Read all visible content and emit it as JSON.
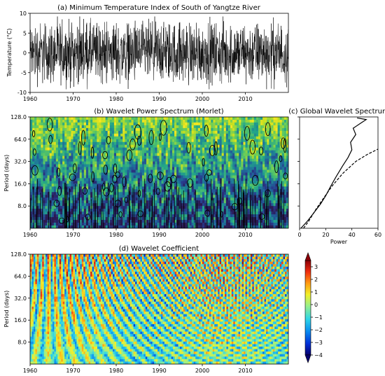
{
  "chart_data": [
    {
      "panel": "a",
      "type": "line",
      "title": "(a) Minimum Temperature Index of South of Yangtze River",
      "xlabel": "",
      "ylabel": "Temperature (°C)",
      "xlim": [
        1960,
        2020
      ],
      "ylim": [
        -10,
        10
      ],
      "x_ticks": [
        "1960",
        "1970",
        "1980",
        "1990",
        "2000",
        "2010"
      ],
      "y_ticks": [
        "10",
        "5",
        "0",
        "-5",
        "-10"
      ],
      "series": [
        {
          "description_range": [
            -9,
            9
          ],
          "color": "#000000"
        }
      ]
    },
    {
      "panel": "b",
      "type": "heatmap",
      "title": "(b) Wavelet Power Spectrum (Morlet)",
      "xlabel": "",
      "ylabel": "Period (days)",
      "xlim": [
        1960,
        2020
      ],
      "y_scale": "log2",
      "ylim": [
        4,
        128
      ],
      "x_ticks": [
        "1960",
        "1970",
        "1980",
        "1990",
        "2000",
        "2010"
      ],
      "y_ticks": [
        "128.0",
        "64.0",
        "32.0",
        "16.0",
        "8.0"
      ],
      "colormap": [
        "#2b1a52",
        "#283a8c",
        "#1f6e9c",
        "#21a38a",
        "#5ec962",
        "#c7e020",
        "#f5e623"
      ]
    },
    {
      "panel": "c",
      "type": "line",
      "title": "(c) Global Wavelet Spectrum",
      "xlabel": "Power",
      "ylabel": "",
      "xlim": [
        0,
        60
      ],
      "y_scale": "log2",
      "ylim": [
        4,
        128
      ],
      "x_ticks": [
        "0",
        "20",
        "40",
        "60"
      ],
      "series": [
        {
          "style": "solid",
          "points": [
            [
              1,
              4
            ],
            [
              6,
              5
            ],
            [
              11,
              6.5
            ],
            [
              16,
              8.5
            ],
            [
              20,
              11
            ],
            [
              24,
              15
            ],
            [
              28,
              20
            ],
            [
              33,
              28
            ],
            [
              37,
              36
            ],
            [
              40,
              46
            ],
            [
              39,
              58
            ],
            [
              43,
              74
            ],
            [
              41,
              90
            ],
            [
              47,
              106
            ],
            [
              51,
              118
            ],
            [
              44,
              124
            ]
          ]
        },
        {
          "style": "dashed",
          "points": [
            [
              3,
              4
            ],
            [
              7,
              5
            ],
            [
              12,
              7
            ],
            [
              18,
              10
            ],
            [
              25,
              15
            ],
            [
              33,
              22
            ],
            [
              43,
              32
            ],
            [
              52,
              40
            ],
            [
              60,
              47
            ]
          ]
        }
      ]
    },
    {
      "panel": "d",
      "type": "heatmap",
      "title": "(d) Wavelet Coefficient",
      "xlabel": "",
      "ylabel": "Period (days)",
      "xlim": [
        1960,
        2020
      ],
      "y_scale": "log2",
      "ylim": [
        4,
        128
      ],
      "x_ticks": [
        "1960",
        "1970",
        "1980",
        "1990",
        "2000",
        "2010"
      ],
      "y_ticks": [
        "128.0",
        "64.0",
        "32.0",
        "16.0",
        "8.0"
      ],
      "colorbar": {
        "ticks": [
          "3",
          "2",
          "1",
          "0",
          "−1",
          "−2",
          "−3",
          "−4"
        ],
        "range": [
          -4,
          3.5
        ]
      },
      "colormap": [
        "#08006e",
        "#0030d8",
        "#0a8cf0",
        "#2fd6e8",
        "#9af08a",
        "#f2f028",
        "#ff9a12",
        "#f02e10",
        "#8c0008"
      ]
    }
  ]
}
